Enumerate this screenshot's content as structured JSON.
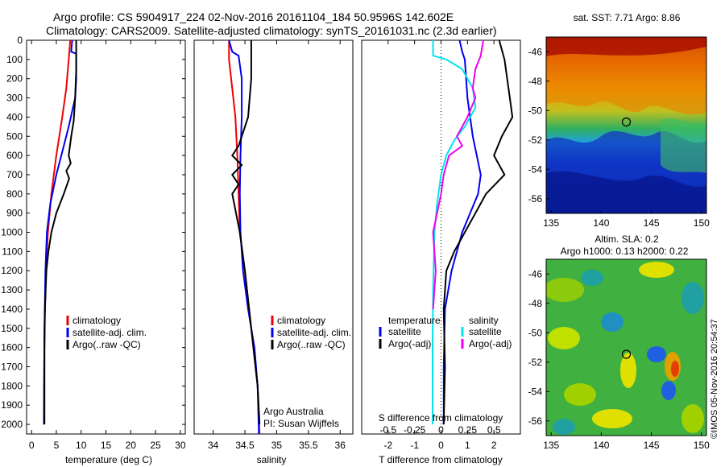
{
  "title": {
    "line1": "Argo profile: CS 5904917_224 02-Nov-2016 20161104_184 50.9596S 142.602E",
    "line2": "Climatology: CARS2009. Satellite-adjusted climatology: synTS_20161031.nc (2.3d earlier)"
  },
  "colors": {
    "climatology": "#ee0000",
    "satellite": "#0000ee",
    "argo": "#000000",
    "sal_satellite": "#00e5ee",
    "sal_argo": "#ee00ee"
  },
  "chart_data": [
    {
      "type": "line",
      "xlabel": "temperature (deg C)",
      "ylabel": "",
      "xlim": [
        -1,
        31
      ],
      "ylim": [
        2050,
        0
      ],
      "xticks": [
        0,
        5,
        10,
        15,
        20,
        25,
        30
      ],
      "yticks": [
        0,
        100,
        200,
        300,
        400,
        500,
        600,
        700,
        800,
        900,
        1000,
        1100,
        1200,
        1300,
        1400,
        1500,
        1600,
        1700,
        1800,
        1900,
        2000
      ],
      "legend": [
        "climatology",
        "satellite-adj. clim.",
        "Argo(..raw -QC)"
      ],
      "series": [
        {
          "name": "climatology",
          "color": "#ee0000",
          "x": [
            7.8,
            7.5,
            7.0,
            6.2,
            5.0,
            4.0,
            3.3,
            2.9,
            2.6,
            2.5
          ],
          "y": [
            0,
            100,
            250,
            400,
            600,
            800,
            1000,
            1200,
            1500,
            2000
          ]
        },
        {
          "name": "satellite-adj. clim.",
          "color": "#0000ee",
          "x": [
            8.2,
            8.0,
            9.0,
            9.0,
            8.8,
            7.5,
            6.5,
            5.0,
            3.8,
            3.1,
            2.8,
            2.6,
            2.5
          ],
          "y": [
            0,
            60,
            70,
            200,
            300,
            450,
            550,
            700,
            850,
            1000,
            1200,
            1500,
            2000
          ]
        },
        {
          "name": "Argo(..raw -QC)",
          "color": "#000000",
          "x": [
            9.0,
            9.0,
            8.8,
            8.5,
            8.0,
            7.5,
            7.9,
            7.0,
            7.6,
            6.5,
            5.0,
            4.0,
            3.4,
            3.0,
            2.7,
            2.6,
            2.6
          ],
          "y": [
            0,
            150,
            300,
            420,
            500,
            600,
            640,
            680,
            720,
            800,
            900,
            1000,
            1100,
            1200,
            1400,
            1600,
            2000
          ]
        }
      ]
    },
    {
      "type": "line",
      "xlabel": "salinity",
      "xlim": [
        33.7,
        36.2
      ],
      "ylim": [
        2050,
        0
      ],
      "xticks": [
        34,
        34.5,
        35,
        35.5,
        36
      ],
      "xticklabels": [
        "34",
        "34.5",
        "35",
        "35.5",
        "36"
      ],
      "legend": [
        "climatology",
        "satellite-adj. clim.",
        "Argo(..raw -QC)"
      ],
      "annotation": [
        "Argo Australia",
        "PI: Susan Wijffels"
      ],
      "series": [
        {
          "name": "climatology",
          "color": "#ee0000",
          "x": [
            34.25,
            34.25,
            34.3,
            34.35,
            34.38,
            34.4,
            34.42,
            34.5,
            34.6,
            34.7,
            34.73
          ],
          "y": [
            0,
            100,
            250,
            400,
            600,
            800,
            1000,
            1200,
            1500,
            1800,
            2050
          ]
        },
        {
          "name": "satellite-adj. clim.",
          "color": "#0000ee",
          "x": [
            34.25,
            34.3,
            34.4,
            34.45,
            34.45,
            34.43,
            34.42,
            34.43,
            34.47,
            34.55,
            34.65,
            34.7,
            34.72
          ],
          "y": [
            0,
            60,
            80,
            200,
            400,
            600,
            800,
            1000,
            1200,
            1400,
            1600,
            1800,
            2050
          ]
        },
        {
          "name": "Argo(..raw -QC)",
          "color": "#000000",
          "x": [
            34.6,
            34.6,
            34.55,
            34.45,
            34.4,
            34.3,
            34.45,
            34.3,
            34.4,
            34.3,
            34.42,
            34.5,
            34.6,
            34.7,
            34.73
          ],
          "y": [
            0,
            200,
            400,
            500,
            550,
            600,
            650,
            700,
            750,
            800,
            1000,
            1200,
            1500,
            1800,
            2000
          ]
        }
      ]
    },
    {
      "type": "line",
      "xlabel": "T difference from climatology",
      "xlim": [
        -3,
        3
      ],
      "ylim": [
        2050,
        0
      ],
      "xticks": [
        -2,
        -1,
        0,
        1,
        2
      ],
      "top_axis_label": "S difference from climatology",
      "top_xticks": [
        -0.5,
        -0.25,
        0,
        0.25,
        0.5
      ],
      "top_xticklabels": [
        "-0.5",
        "-0.25",
        "0",
        "0.25",
        "0.5"
      ],
      "legend_headers": [
        "temperature",
        "salinity"
      ],
      "legend": [
        "satellite",
        "Argo(-adj)",
        "satellite",
        "Argo(-adj)"
      ],
      "series": [
        {
          "name": "satellite",
          "color": "#0000ee",
          "x": [
            0.7,
            0.8,
            0.9,
            1.0,
            1.2,
            1.5,
            1.4,
            1.1,
            0.8,
            0.4,
            0.15,
            0.1,
            0.1
          ],
          "y": [
            0,
            60,
            100,
            300,
            500,
            700,
            800,
            900,
            1000,
            1200,
            1400,
            1700,
            2000
          ]
        },
        {
          "name": "Argo(-adj)",
          "color": "#000000",
          "x": [
            2.2,
            2.4,
            2.5,
            2.6,
            2.7,
            2.3,
            2.0,
            2.4,
            1.7,
            1.3,
            0.9,
            0.5,
            0.2,
            0.1,
            0.15,
            0.1
          ],
          "y": [
            0,
            100,
            200,
            300,
            400,
            500,
            600,
            700,
            800,
            900,
            1000,
            1100,
            1200,
            1400,
            1700,
            2000
          ]
        },
        {
          "name": "satellite",
          "color": "#00e5ee",
          "x": [
            -0.3,
            -0.3,
            0.2,
            0.8,
            1.2,
            1.3,
            0.9,
            0.5,
            0.2,
            0.0,
            -0.15,
            -0.25,
            -0.3,
            -0.32,
            -0.32
          ],
          "y": [
            0,
            80,
            100,
            150,
            250,
            350,
            450,
            520,
            600,
            700,
            850,
            1000,
            1300,
            1600,
            2000
          ]
        },
        {
          "name": "Argo(-adj)",
          "color": "#ee00ee",
          "x": [
            1.6,
            1.5,
            1.3,
            1.2,
            1.3,
            1.0,
            0.6,
            0.8,
            0.3,
            0.1,
            0.0,
            -0.15,
            -0.3,
            -0.25,
            -0.2,
            -0.3
          ],
          "y": [
            0,
            80,
            150,
            250,
            300,
            400,
            500,
            550,
            600,
            700,
            800,
            900,
            1000,
            1100,
            1200,
            1400
          ]
        }
      ]
    },
    {
      "type": "heatmap",
      "title": "sat. SST: 7.71 Argo: 8.86",
      "xticks": [
        135,
        140,
        145,
        150
      ],
      "yticks": [
        -46,
        -48,
        -50,
        -52,
        -54,
        -56
      ],
      "xlim": [
        134.5,
        150.5
      ],
      "ylim": [
        -57,
        -45
      ],
      "marker": {
        "lon": 142.602,
        "lat": -50.9596
      }
    },
    {
      "type": "heatmap",
      "title_lines": [
        "Altim. SLA: 0.2",
        "Argo h1000: 0.13 h2000: 0.22"
      ],
      "xticks": [
        135,
        140,
        145,
        150
      ],
      "yticks": [
        -46,
        -48,
        -50,
        -52,
        -54,
        -56
      ],
      "xlim": [
        134.5,
        150.5
      ],
      "ylim": [
        -57,
        -45
      ],
      "marker": {
        "lon": 142.602,
        "lat": -50.9596
      }
    }
  ],
  "side_label": "©IMOS 05-Nov-2016 20:54:37"
}
